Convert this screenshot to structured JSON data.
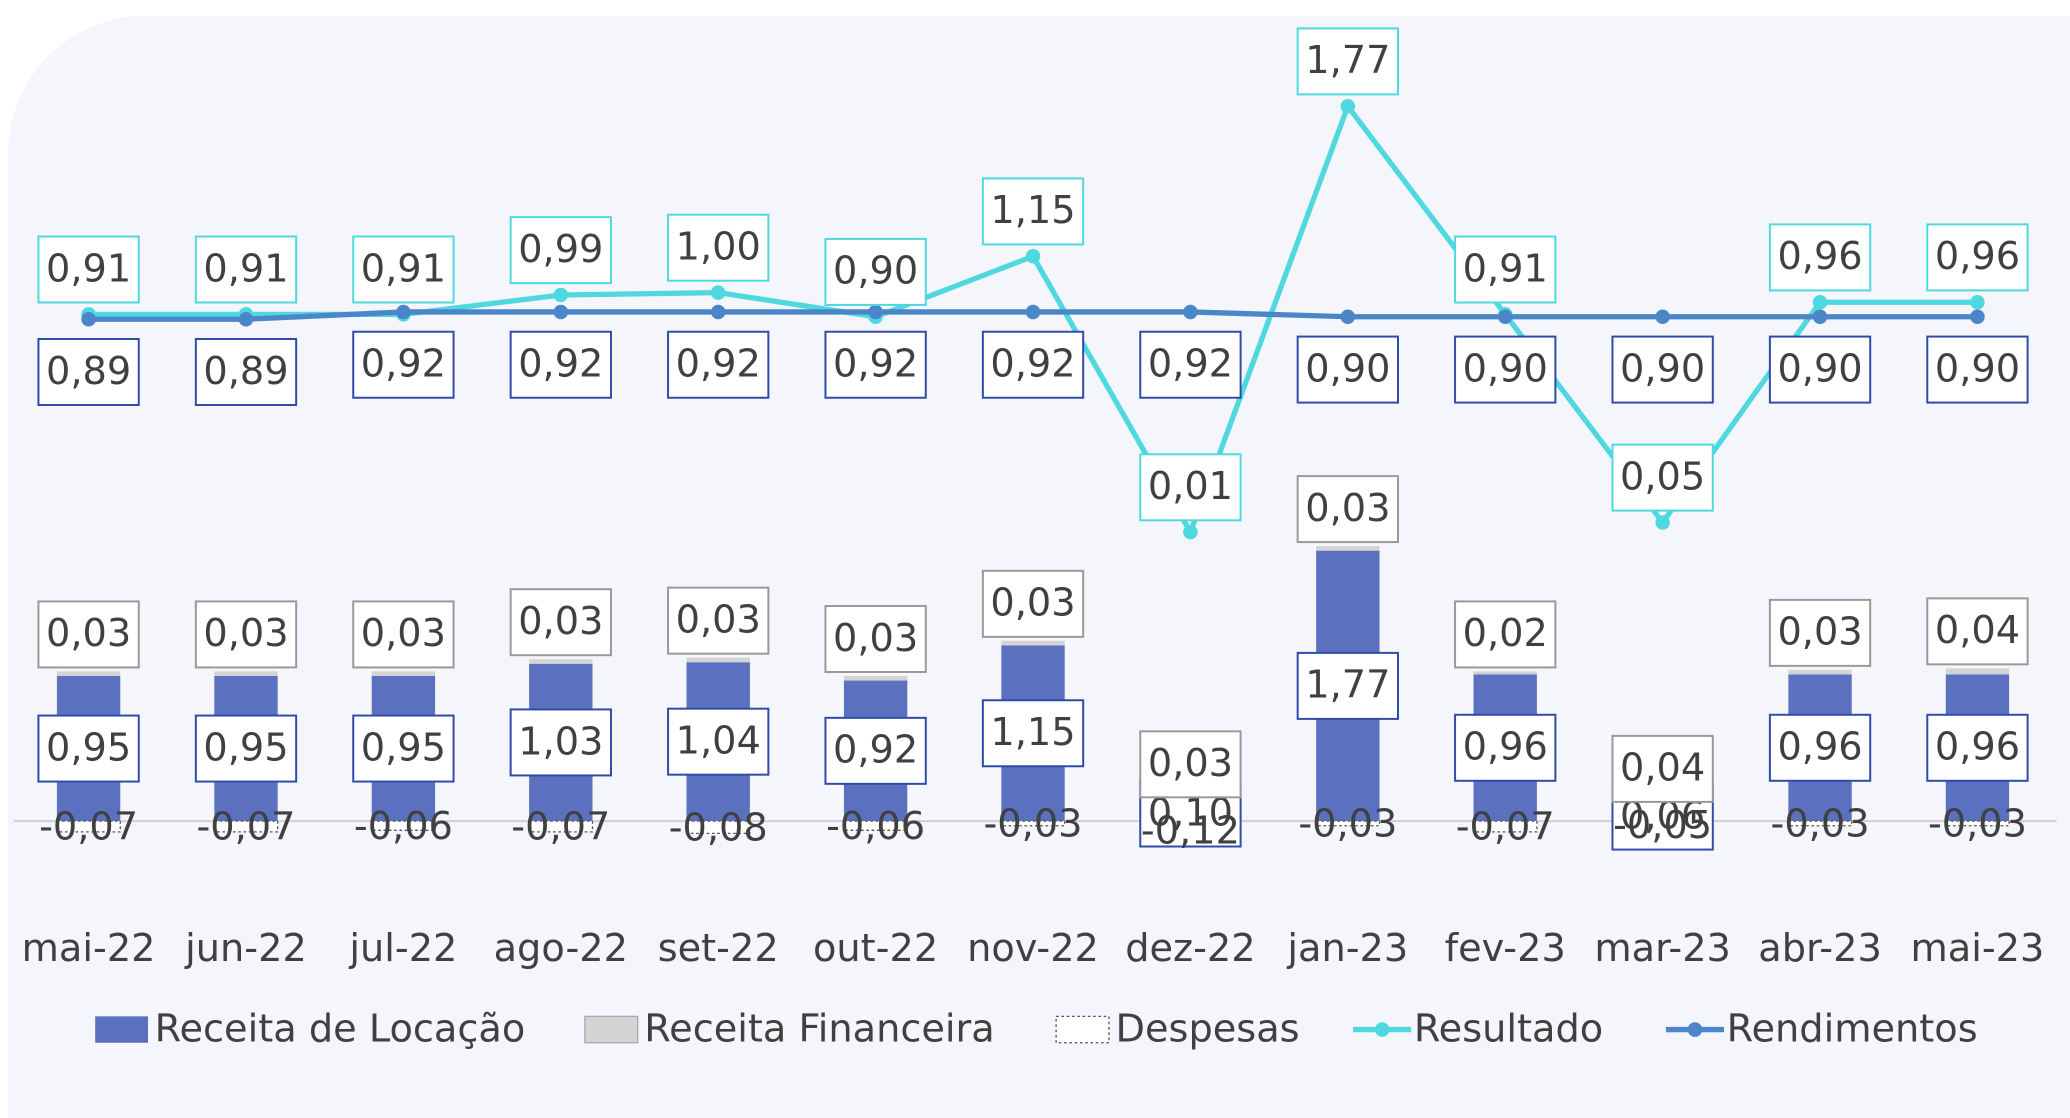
{
  "chart_data": {
    "type": "combo",
    "categories": [
      "mai-22",
      "jun-22",
      "jul-22",
      "ago-22",
      "set-22",
      "out-22",
      "nov-22",
      "dez-22",
      "jan-23",
      "fev-23",
      "mar-23",
      "abr-23",
      "mai-23"
    ],
    "ylim": [
      -0.5,
      5.2
    ],
    "y2lim": [
      -1.5,
      2.1
    ],
    "series": [
      {
        "name": "Receita de Locação",
        "type": "bar",
        "color": "#5b70bf",
        "values": [
          0.95,
          0.95,
          0.95,
          1.03,
          1.04,
          0.92,
          1.15,
          0.1,
          1.77,
          0.96,
          0.06,
          0.96,
          0.96
        ],
        "value_labels": [
          "0,95",
          "0,95",
          "0,95",
          "1,03",
          "1,04",
          "0,92",
          "1,15",
          "0,10",
          "1,77",
          "0,96",
          "0,06",
          "0,96",
          "0,96"
        ]
      },
      {
        "name": "Receita Financeira",
        "type": "bar",
        "color": "#d4d4d4",
        "values": [
          0.03,
          0.03,
          0.03,
          0.03,
          0.03,
          0.03,
          0.03,
          0.03,
          0.03,
          0.02,
          0.04,
          0.03,
          0.04
        ],
        "value_labels": [
          "0,03",
          "0,03",
          "0,03",
          "0,03",
          "0,03",
          "0,03",
          "0,03",
          "0,03",
          "0,03",
          "0,02",
          "0,04",
          "0,03",
          "0,04"
        ]
      },
      {
        "name": "Despesas",
        "type": "bar",
        "color": "#ffffff",
        "values": [
          -0.07,
          -0.07,
          -0.06,
          -0.07,
          -0.08,
          -0.06,
          -0.03,
          -0.12,
          -0.03,
          -0.07,
          -0.05,
          -0.03,
          -0.03
        ],
        "value_labels": [
          "-0,07",
          "-0,07",
          "-0,06",
          "-0,07",
          "-0,08",
          "-0,06",
          "-0,03",
          "-0,12",
          "-0,03",
          "-0,07",
          "-0,05",
          "-0,03",
          "-0,03"
        ]
      },
      {
        "name": "Resultado",
        "type": "line",
        "axis": "y2",
        "color": "#4fd8df",
        "values": [
          0.91,
          0.91,
          0.91,
          0.99,
          1.0,
          0.9,
          1.15,
          0.01,
          1.77,
          0.91,
          0.05,
          0.96,
          0.96
        ],
        "value_labels": [
          "0,91",
          "0,91",
          "0,91",
          "0,99",
          "1,00",
          "0,90",
          "1,15",
          "0,01",
          "1,77",
          "0,91",
          "0,05",
          "0,96",
          "0,96"
        ]
      },
      {
        "name": "Rendimentos",
        "type": "line",
        "axis": "y2",
        "color": "#4a86c8",
        "values": [
          0.89,
          0.89,
          0.92,
          0.92,
          0.92,
          0.92,
          0.92,
          0.92,
          0.9,
          0.9,
          0.9,
          0.9,
          0.9
        ],
        "value_labels": [
          "0,89",
          "0,89",
          "0,92",
          "0,92",
          "0,92",
          "0,92",
          "0,92",
          "0,92",
          "0,90",
          "0,90",
          "0,90",
          "0,90",
          "0,90"
        ]
      }
    ]
  }
}
